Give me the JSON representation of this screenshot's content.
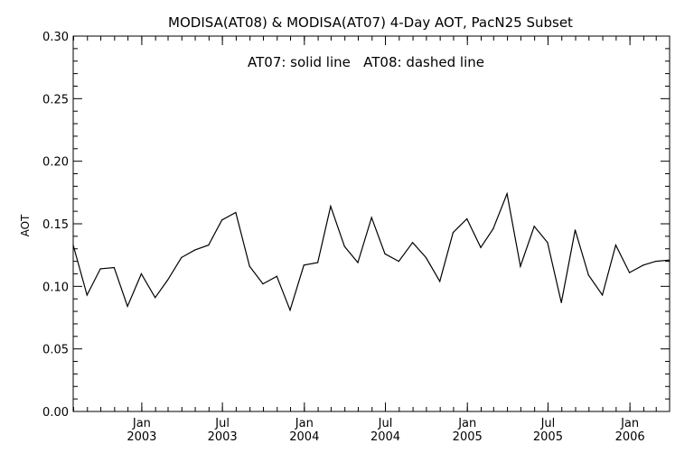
{
  "chart_data": {
    "type": "line",
    "title": "MODISA(AT08) & MODISA(AT07) 4-Day AOT, PacN25 Subset",
    "annotation": "AT07: solid line   AT08: dashed line",
    "xlabel": "",
    "ylabel": "AOT",
    "ylim": [
      0.0,
      0.3
    ],
    "yticks": [
      "0.00",
      "0.05",
      "0.10",
      "0.15",
      "0.20",
      "0.25",
      "0.30"
    ],
    "xlim": [
      "2002-07-31",
      "2006-03-31"
    ],
    "xticks": [
      {
        "date": "2003-01-01",
        "month": "Jan",
        "year": "2003"
      },
      {
        "date": "2003-07-01",
        "month": "Jul",
        "year": "2003"
      },
      {
        "date": "2004-01-01",
        "month": "Jan",
        "year": "2004"
      },
      {
        "date": "2004-07-01",
        "month": "Jul",
        "year": "2004"
      },
      {
        "date": "2005-01-01",
        "month": "Jan",
        "year": "2005"
      },
      {
        "date": "2005-07-01",
        "month": "Jul",
        "year": "2005"
      },
      {
        "date": "2006-01-01",
        "month": "Jan",
        "year": "2006"
      }
    ],
    "grid": false,
    "series": [
      {
        "style": "solid",
        "color": "#000000",
        "x": [
          "2002-07-31",
          "2002-08-31",
          "2002-09-30",
          "2002-10-31",
          "2002-11-30",
          "2002-12-31",
          "2003-01-31",
          "2003-02-28",
          "2003-03-31",
          "2003-04-30",
          "2003-05-31",
          "2003-06-30",
          "2003-07-31",
          "2003-08-31",
          "2003-09-30",
          "2003-10-31",
          "2003-11-30",
          "2003-12-31",
          "2004-01-31",
          "2004-02-29",
          "2004-03-31",
          "2004-04-30",
          "2004-05-31",
          "2004-06-30",
          "2004-07-31",
          "2004-08-31",
          "2004-09-30",
          "2004-10-31",
          "2004-11-30",
          "2004-12-31",
          "2005-01-31",
          "2005-02-28",
          "2005-03-31",
          "2005-04-30",
          "2005-05-31",
          "2005-06-30",
          "2005-07-31",
          "2005-08-31",
          "2005-09-30",
          "2005-10-31",
          "2005-11-30",
          "2005-12-31",
          "2006-01-31",
          "2006-02-28",
          "2006-03-31"
        ],
        "y": [
          0.133,
          0.093,
          0.114,
          0.115,
          0.084,
          0.11,
          0.091,
          0.105,
          0.123,
          0.129,
          0.133,
          0.153,
          0.159,
          0.116,
          0.102,
          0.108,
          0.081,
          0.117,
          0.119,
          0.164,
          0.132,
          0.119,
          0.155,
          0.126,
          0.12,
          0.135,
          0.123,
          0.104,
          0.143,
          0.154,
          0.131,
          0.146,
          0.174,
          0.116,
          0.148,
          0.135,
          0.087,
          0.145,
          0.109,
          0.093,
          0.133,
          0.111,
          0.117,
          0.12,
          0.121
        ]
      }
    ]
  }
}
